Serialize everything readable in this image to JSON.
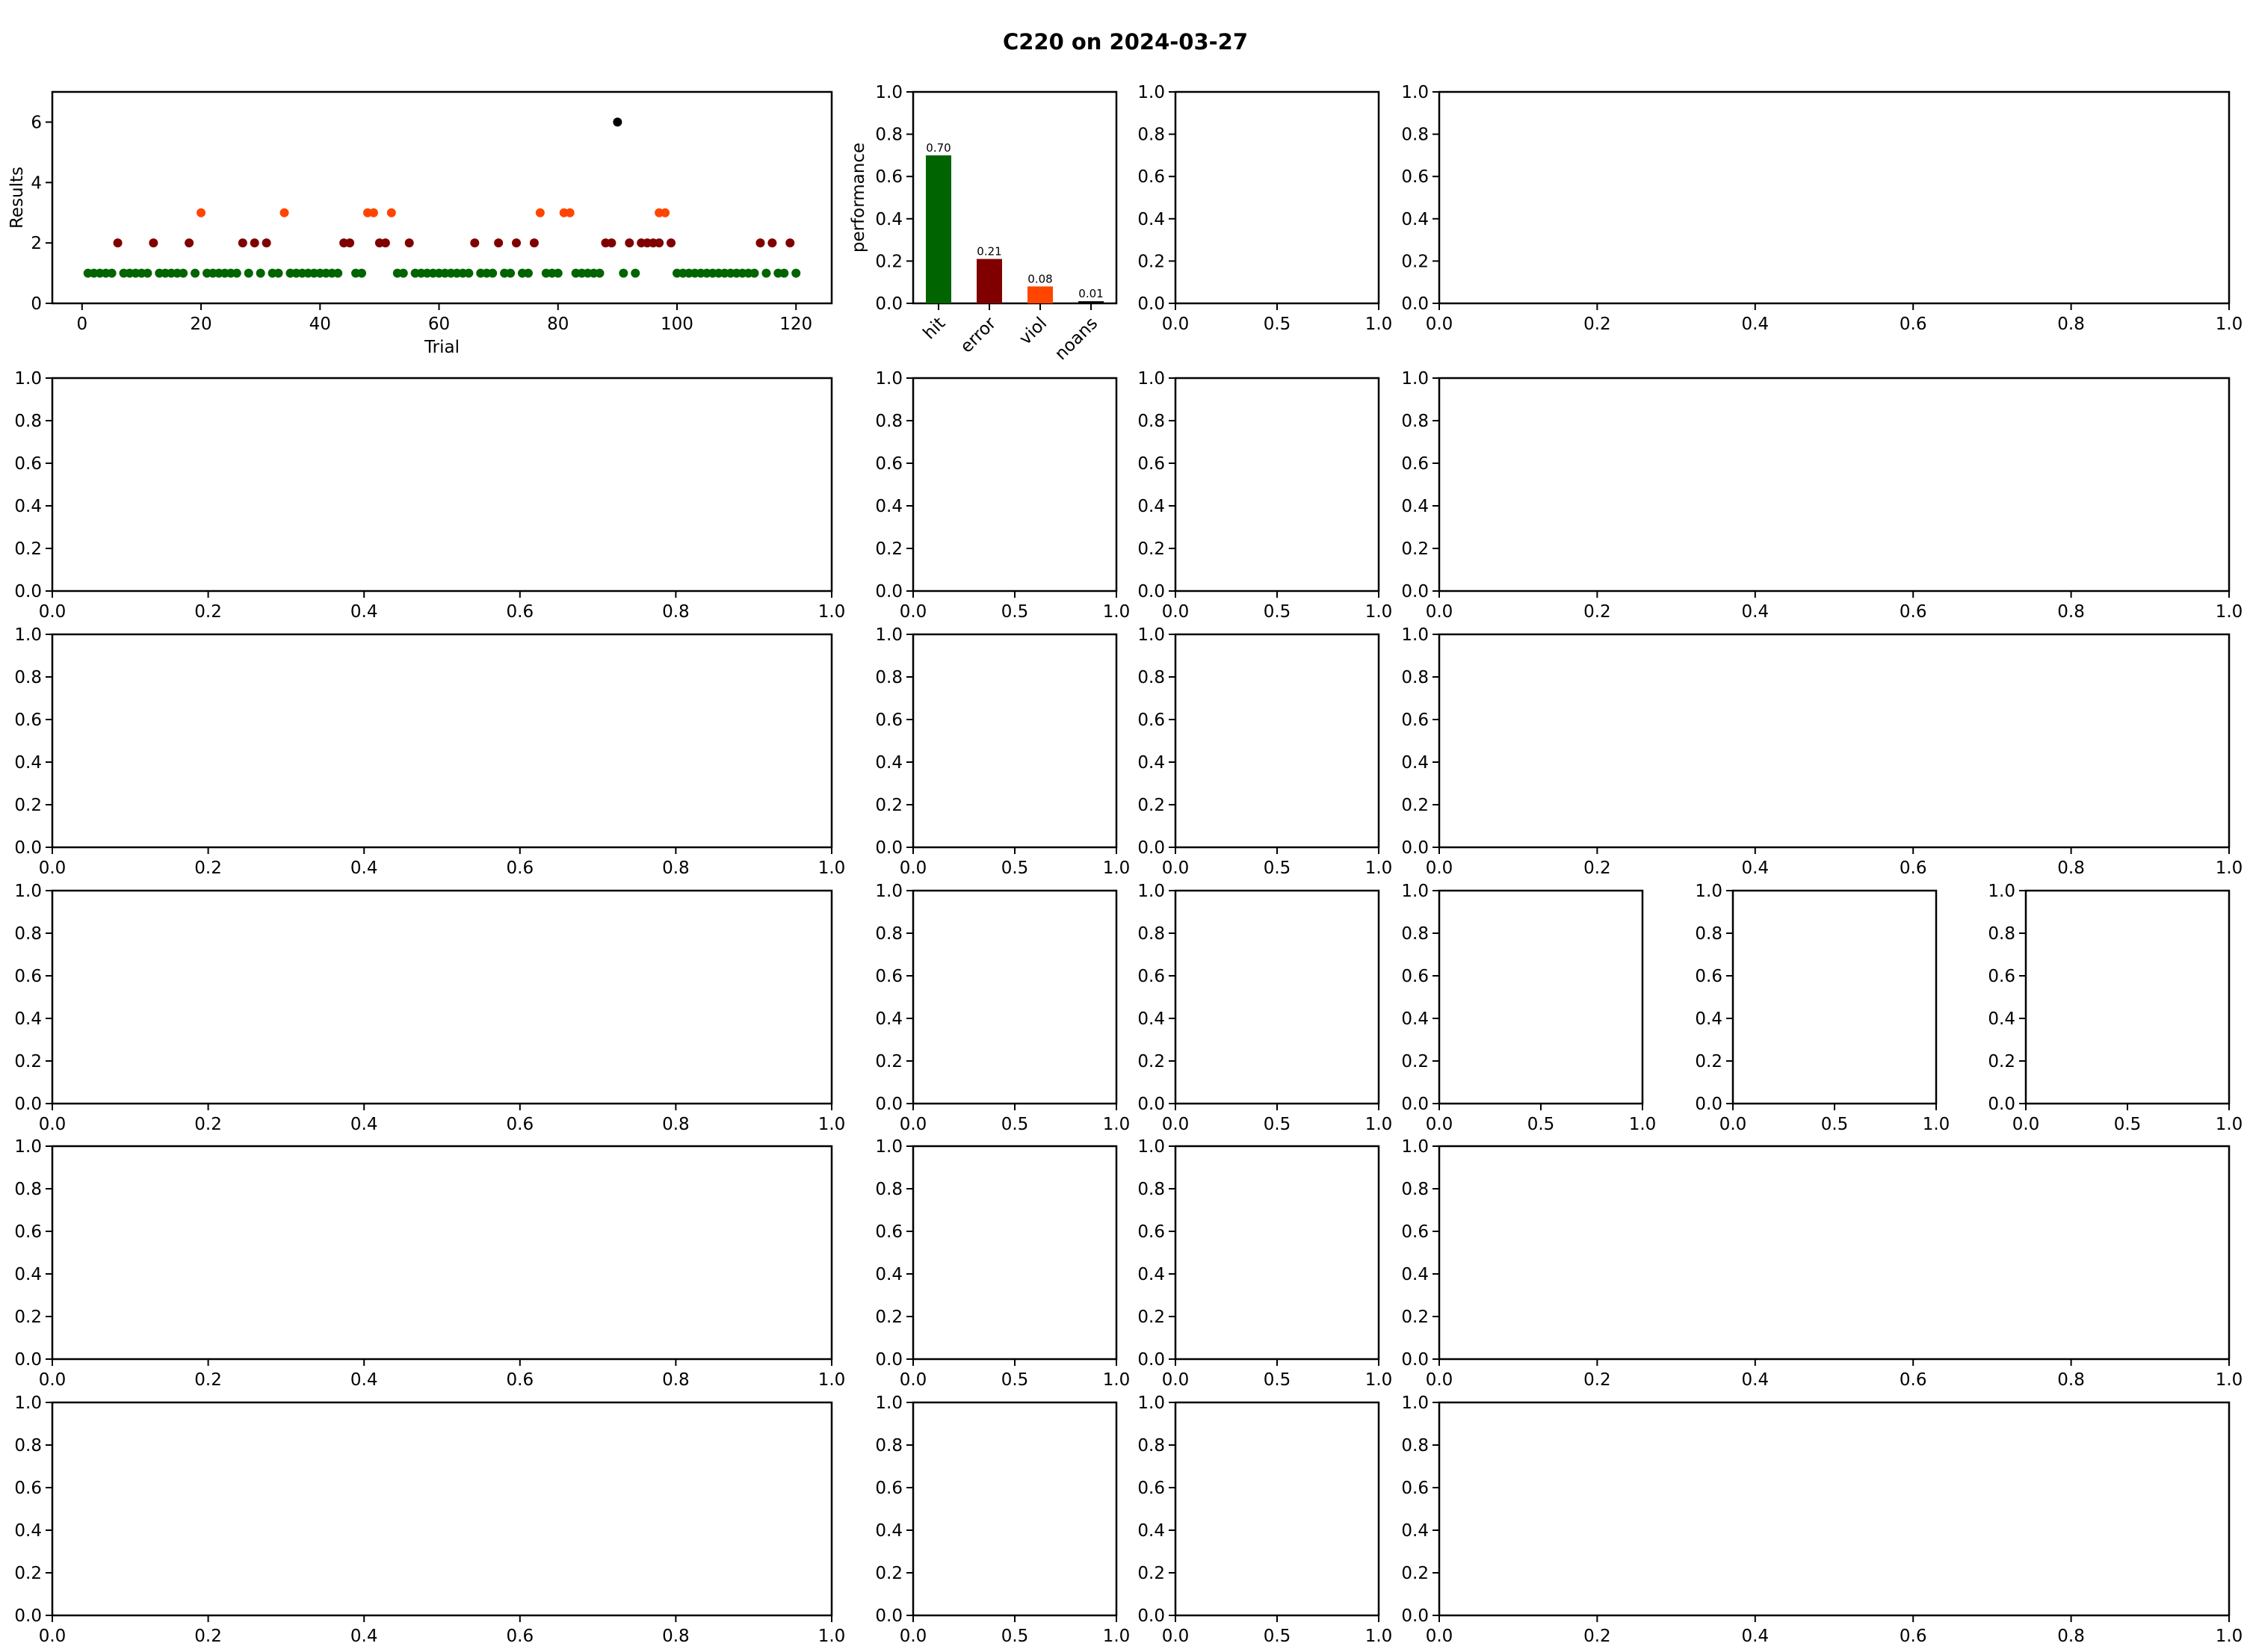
{
  "figure": {
    "title": "C220 on 2024-03-27",
    "colors": {
      "hit": "#006400",
      "error": "#800000",
      "viol": "#FF4500",
      "noans": "#000000",
      "axis": "#000000"
    }
  },
  "chart_data": [
    {
      "type": "scatter",
      "panel": "results-over-trials",
      "xlabel": "Trial",
      "ylabel": "Results",
      "xlim": [
        -5,
        126
      ],
      "ylim": [
        0,
        7
      ],
      "xticks": [
        0,
        20,
        40,
        60,
        80,
        100,
        120
      ],
      "yticks": [
        0,
        2,
        4,
        6
      ],
      "legend": "none",
      "grid": false,
      "series": [
        {
          "color_key": "hit",
          "x": [
            1,
            2,
            3,
            4,
            5,
            7,
            8,
            9,
            10,
            11,
            13,
            14,
            15,
            16,
            17,
            19,
            21,
            22,
            23,
            24,
            25,
            26,
            28,
            30,
            32,
            33,
            35,
            36,
            37,
            38,
            39,
            40,
            41,
            42,
            43,
            46,
            47,
            53,
            54,
            56,
            57,
            58,
            59,
            60,
            61,
            62,
            63,
            64,
            65,
            67,
            68,
            69,
            71,
            72,
            74,
            75,
            78,
            79,
            80,
            83,
            84,
            85,
            86,
            87,
            91,
            93,
            100,
            101,
            102,
            103,
            104,
            105,
            106,
            107,
            108,
            109,
            110,
            111,
            112,
            113,
            115,
            117,
            118,
            120
          ],
          "y": [
            1,
            1,
            1,
            1,
            1,
            1,
            1,
            1,
            1,
            1,
            1,
            1,
            1,
            1,
            1,
            1,
            1,
            1,
            1,
            1,
            1,
            1,
            1,
            1,
            1,
            1,
            1,
            1,
            1,
            1,
            1,
            1,
            1,
            1,
            1,
            1,
            1,
            1,
            1,
            1,
            1,
            1,
            1,
            1,
            1,
            1,
            1,
            1,
            1,
            1,
            1,
            1,
            1,
            1,
            1,
            1,
            1,
            1,
            1,
            1,
            1,
            1,
            1,
            1,
            1,
            1,
            1,
            1,
            1,
            1,
            1,
            1,
            1,
            1,
            1,
            1,
            1,
            1,
            1,
            1,
            1,
            1,
            1,
            1
          ]
        },
        {
          "color_key": "error",
          "x": [
            6,
            12,
            18,
            27,
            29,
            31,
            44,
            45,
            50,
            51,
            55,
            66,
            70,
            73,
            76,
            88,
            89,
            92,
            94,
            95,
            96,
            97,
            99,
            114,
            116,
            119
          ],
          "y": [
            2,
            2,
            2,
            2,
            2,
            2,
            2,
            2,
            2,
            2,
            2,
            2,
            2,
            2,
            2,
            2,
            2,
            2,
            2,
            2,
            2,
            2,
            2,
            2,
            2,
            2
          ]
        },
        {
          "color_key": "viol",
          "x": [
            20,
            34,
            48,
            49,
            52,
            77,
            81,
            82,
            97,
            98
          ],
          "y": [
            3,
            3,
            3,
            3,
            3,
            3,
            3,
            3,
            3,
            3
          ]
        },
        {
          "color_key": "noans",
          "x": [
            90
          ],
          "y": [
            6
          ]
        }
      ]
    },
    {
      "type": "bar",
      "panel": "performance",
      "ylabel": "performance",
      "categories": [
        "hit",
        "error",
        "viol",
        "noans"
      ],
      "values": [
        0.7,
        0.21,
        0.08,
        0.01
      ],
      "value_labels": [
        "0.70",
        "0.21",
        "0.08",
        "0.01"
      ],
      "color_keys": [
        "hit",
        "error",
        "viol",
        "noans"
      ],
      "ylim": [
        0,
        1
      ],
      "yticks": [
        0.0,
        0.2,
        0.4,
        0.6,
        0.8,
        1.0
      ]
    }
  ],
  "empty_axes": {
    "ticks_5": [
      "0.0",
      "0.2",
      "0.4",
      "0.6",
      "0.8",
      "1.0"
    ],
    "ticks_3": [
      "0.0",
      "0.5",
      "1.0"
    ],
    "y_ticks": [
      "0.0",
      "0.2",
      "0.4",
      "0.6",
      "0.8",
      "1.0"
    ]
  }
}
